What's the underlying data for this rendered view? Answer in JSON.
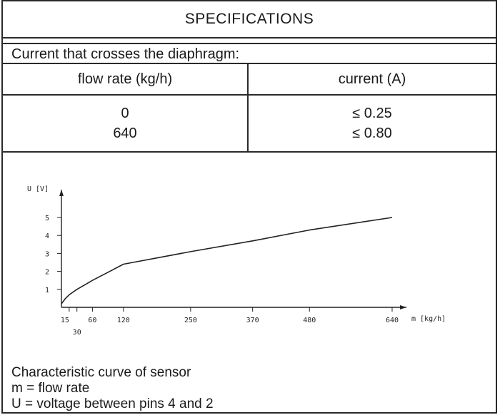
{
  "title": "SPECIFICATIONS",
  "current_heading": "Current that crosses the diaphragm:",
  "table": {
    "headers": [
      "flow rate (kg/h)",
      "current (A)"
    ],
    "rows": [
      {
        "flow": "0",
        "current": "≤ 0.25"
      },
      {
        "flow": "640",
        "current": "≤ 0.80"
      }
    ]
  },
  "chart_data": {
    "type": "line",
    "title": "",
    "xlabel": "m [kg/h]",
    "ylabel": "U [V]",
    "x_ticks": [
      "15",
      "30",
      "60",
      "120",
      "250",
      "370",
      "480",
      "640"
    ],
    "y_ticks": [
      "1",
      "2",
      "3",
      "4",
      "5"
    ],
    "xlim": [
      0,
      680
    ],
    "ylim": [
      0,
      6
    ],
    "series": [
      {
        "x": [
          0,
          8,
          15,
          30,
          60,
          90,
          120,
          250,
          370,
          480,
          640
        ],
        "y": [
          0.2,
          0.5,
          0.7,
          1.0,
          1.5,
          1.95,
          2.4,
          3.1,
          3.7,
          4.3,
          5.0
        ]
      }
    ]
  },
  "caption": {
    "line1": "Characteristic curve of sensor",
    "line2": "m = flow rate",
    "line3": "U = voltage between pins 4 and 2"
  }
}
